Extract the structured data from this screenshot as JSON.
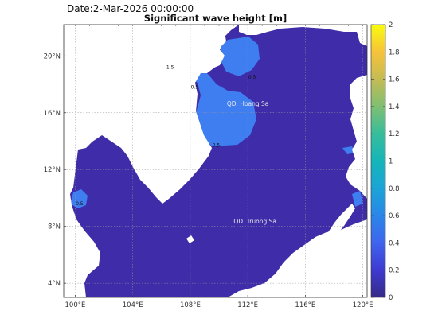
{
  "header": {
    "date": "Date:2-Mar-2026 00:00:00",
    "title": "Significant wave height [m]"
  },
  "map": {
    "lon_range": [
      99.2,
      120.3
    ],
    "lat_range": [
      3.0,
      22.2
    ],
    "lon_ticks": [
      "100°E",
      "104°E",
      "108°E",
      "112°E",
      "116°E",
      "120°E"
    ],
    "lat_ticks": [
      "4°N",
      "8°N",
      "12°N",
      "16°N",
      "20°N"
    ],
    "grid": true,
    "places": [
      {
        "name": "QD. Hoang Sa",
        "lon": 112.0,
        "lat": 16.5
      },
      {
        "name": "QD. Truong Sa",
        "lon": 112.5,
        "lat": 8.2
      }
    ],
    "contour_labels": [
      {
        "text": "1.5",
        "lon": 106.6,
        "lat": 19.1
      },
      {
        "text": "0.5",
        "lon": 108.3,
        "lat": 17.7
      },
      {
        "text": "0.5",
        "lon": 112.3,
        "lat": 18.4
      },
      {
        "text": "0.5",
        "lon": 109.8,
        "lat": 13.6
      },
      {
        "text": "0.5",
        "lon": 100.3,
        "lat": 9.5
      }
    ]
  },
  "colorbar": {
    "range": [
      0,
      2
    ],
    "ticks": [
      "0",
      "0.2",
      "0.4",
      "0.6",
      "0.8",
      "1",
      "1.2",
      "1.4",
      "1.6",
      "1.8",
      "2"
    ],
    "colors": {
      "0.15": "#3e2ca8",
      "0.4": "#3f7ef0",
      "0.9": "#1eb3ac",
      "1.5": "#b2be2c",
      "1.8": "#f2b43a",
      "land": "#ffffff"
    }
  }
}
